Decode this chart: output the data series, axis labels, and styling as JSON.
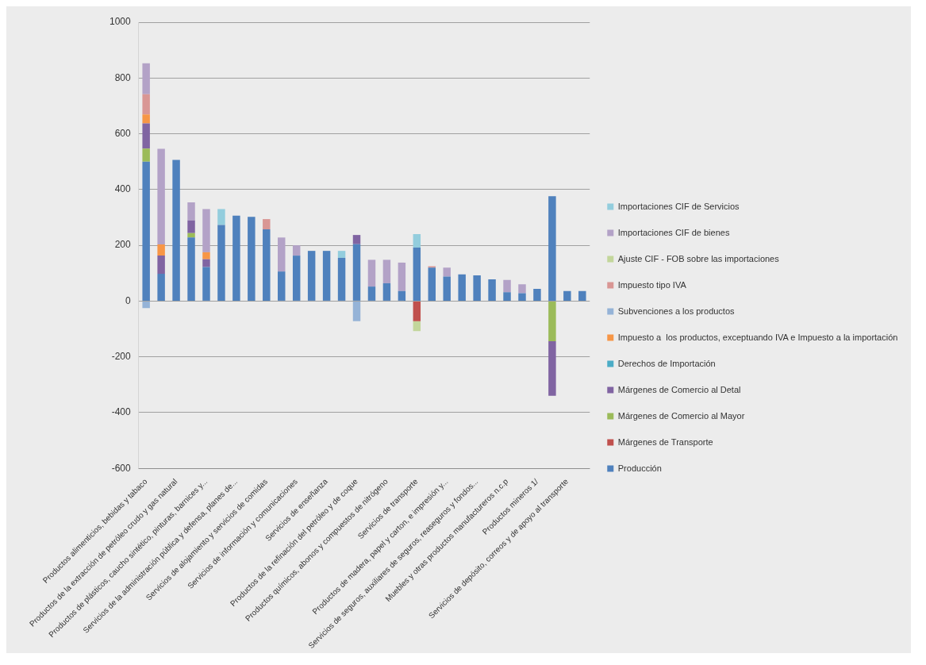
{
  "chart_data": {
    "type": "bar",
    "stacked": true,
    "categories": [
      "Productos alimenticios, bebidas y tabaco",
      null,
      "Productos de la extracción de petróleo crudo y gas natural",
      null,
      "Productos de plásticos, caucho sintético, pinturas, barnices y...",
      null,
      "Servicios de la administración pública y defensa, planes de...",
      null,
      "Servicios de alojamiento y servicios de comidas",
      null,
      "Servicios de información y comunicaciones",
      null,
      "Servicios de enseñanza",
      null,
      "Productos de la refinación del petróleo y de coque",
      null,
      "Productos químicos, abonos y compuestos de nitrógeno",
      null,
      "Servicios de transporte",
      null,
      "Productos de madera, papel y carton, e impresión y...",
      null,
      "Servicios de seguros, auxiliares de seguros, reaseguros y fondos...",
      null,
      "Muebles y otras productos manufactureros n.c.p",
      null,
      "Productos mineros 1/",
      null,
      "Servicios de depósito, correos y de apoyo al transporte",
      null
    ],
    "series": [
      {
        "name": "Producción",
        "color": "#4f81bd",
        "values": [
          500,
          98,
          506,
          228,
          122,
          273,
          306,
          302,
          257,
          106,
          163,
          180,
          180,
          155,
          204,
          52,
          64,
          36,
          192,
          120,
          88,
          96,
          92,
          78,
          32,
          28,
          44,
          376,
          36,
          36
        ]
      },
      {
        "name": "Márgenes de Transporte",
        "color": "#c0504d",
        "values": [
          null,
          null,
          null,
          null,
          null,
          null,
          null,
          null,
          null,
          null,
          null,
          null,
          null,
          null,
          null,
          null,
          null,
          null,
          -72,
          null,
          null,
          null,
          null,
          null,
          null,
          null,
          null,
          null,
          null,
          null
        ]
      },
      {
        "name": "Márgenes de Comercio al Mayor",
        "color": "#9bbb59",
        "values": [
          47,
          null,
          null,
          16,
          null,
          null,
          null,
          null,
          null,
          null,
          null,
          null,
          null,
          null,
          null,
          null,
          null,
          null,
          null,
          null,
          null,
          null,
          null,
          null,
          null,
          null,
          null,
          -144,
          null,
          null
        ]
      },
      {
        "name": "Márgenes de Comercio al Detal",
        "color": "#8064a2",
        "values": [
          90,
          65,
          null,
          45,
          28,
          null,
          null,
          null,
          null,
          null,
          null,
          null,
          null,
          null,
          33,
          null,
          null,
          null,
          null,
          null,
          null,
          null,
          null,
          null,
          null,
          null,
          null,
          -196,
          null,
          null
        ]
      },
      {
        "name": "Derechos de Importación",
        "color": "#4bacc6",
        "values": [
          null,
          null,
          null,
          null,
          null,
          null,
          null,
          null,
          null,
          null,
          null,
          null,
          null,
          null,
          null,
          null,
          null,
          null,
          null,
          null,
          null,
          null,
          null,
          null,
          null,
          null,
          null,
          null,
          null,
          null
        ]
      },
      {
        "name": "Impuesto a  los productos, exceptuando IVA e Impuesto a la importación",
        "color": "#f79646",
        "values": [
          32,
          40,
          null,
          null,
          25,
          null,
          null,
          null,
          null,
          null,
          null,
          null,
          null,
          null,
          null,
          null,
          null,
          null,
          null,
          null,
          null,
          null,
          null,
          null,
          null,
          null,
          null,
          null,
          null,
          null
        ]
      },
      {
        "name": "Subvenciones a los productos",
        "color": "#95b3d7",
        "values": [
          -25,
          null,
          null,
          null,
          null,
          null,
          null,
          null,
          null,
          null,
          null,
          null,
          null,
          null,
          -72,
          null,
          null,
          null,
          null,
          null,
          null,
          null,
          null,
          null,
          null,
          null,
          null,
          null,
          null,
          null
        ]
      },
      {
        "name": "Impuesto tipo IVA",
        "color": "#d99694",
        "values": [
          73,
          null,
          null,
          null,
          null,
          null,
          null,
          null,
          37,
          null,
          null,
          null,
          null,
          null,
          null,
          null,
          null,
          null,
          null,
          5,
          null,
          null,
          null,
          null,
          null,
          null,
          null,
          null,
          null,
          null
        ]
      },
      {
        "name": "Ajuste CIF - FOB sobre las importaciones",
        "color": "#c3d69b",
        "values": [
          null,
          null,
          null,
          null,
          null,
          null,
          null,
          null,
          null,
          null,
          null,
          null,
          null,
          null,
          null,
          null,
          null,
          null,
          -36,
          null,
          null,
          null,
          null,
          null,
          null,
          null,
          null,
          null,
          null,
          null
        ]
      },
      {
        "name": "Importaciones CIF de bienes",
        "color": "#b3a2c7",
        "values": [
          111,
          343,
          null,
          65,
          155,
          null,
          null,
          null,
          null,
          122,
          37,
          null,
          null,
          null,
          null,
          96,
          84,
          102,
          null,
          null,
          32,
          null,
          null,
          null,
          44,
          32,
          null,
          null,
          null,
          null
        ]
      },
      {
        "name": "Importaciones CIF de Servicios",
        "color": "#93cddd",
        "values": [
          null,
          null,
          null,
          null,
          null,
          57,
          null,
          null,
          null,
          null,
          null,
          null,
          null,
          25,
          null,
          null,
          null,
          null,
          48,
          null,
          null,
          null,
          null,
          null,
          null,
          null,
          null,
          null,
          null,
          null
        ]
      }
    ],
    "ylim": [
      -600,
      1000
    ],
    "yticks": [
      -600,
      -400,
      -200,
      0,
      200,
      400,
      600,
      800,
      1000
    ],
    "grid": "y",
    "legend": "right"
  }
}
